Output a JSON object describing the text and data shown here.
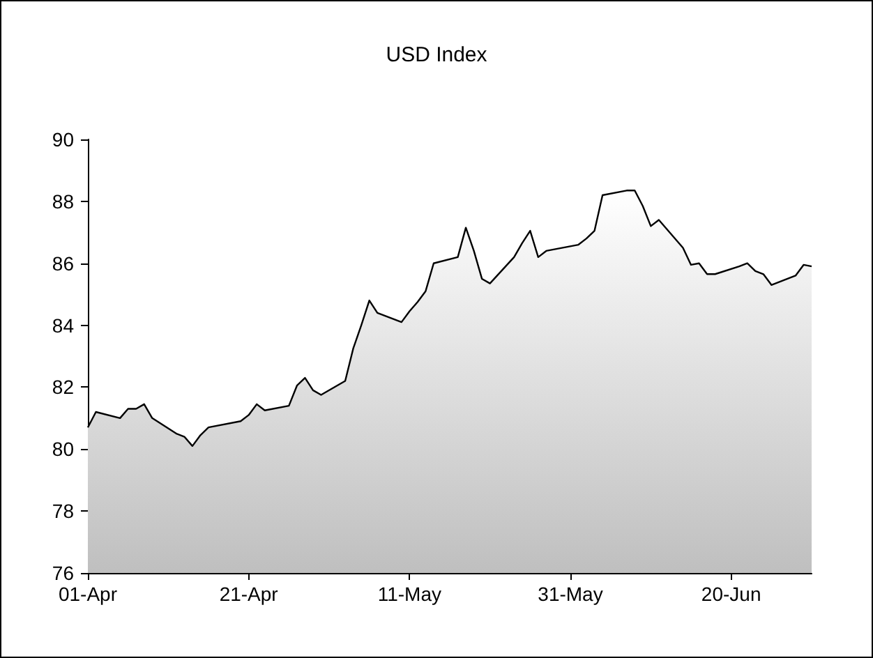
{
  "chart_data": {
    "type": "area",
    "title": "USD Index",
    "x": [
      "--04-01",
      "--04-02",
      "--04-05",
      "--04-06",
      "--04-07",
      "--04-08",
      "--04-09",
      "--04-12",
      "--04-13",
      "--04-14",
      "--04-15",
      "--04-16",
      "--04-20",
      "--04-21",
      "--04-22",
      "--04-23",
      "--04-26",
      "--04-27",
      "--04-28",
      "--04-29",
      "--04-30",
      "--05-03",
      "--05-04",
      "--05-05",
      "--05-06",
      "--05-07",
      "--05-10",
      "--05-11",
      "--05-12",
      "--05-13",
      "--05-14",
      "--05-17",
      "--05-18",
      "--05-19",
      "--05-20",
      "--05-21",
      "--05-24",
      "--05-25",
      "--05-26",
      "--05-27",
      "--05-28",
      "--06-01",
      "--06-02",
      "--06-03",
      "--06-04",
      "--06-07",
      "--06-08",
      "--06-09",
      "--06-10",
      "--06-11",
      "--06-14",
      "--06-15",
      "--06-16",
      "--06-17",
      "--06-18",
      "--06-21",
      "--06-22",
      "--06-23",
      "--06-24",
      "--06-25",
      "--06-28",
      "--06-29",
      "--06-30"
    ],
    "series": [
      {
        "color": "#000000",
        "values": [
          80.7,
          81.2,
          81.0,
          81.3,
          81.3,
          81.45,
          81.0,
          80.5,
          80.4,
          80.1,
          80.45,
          80.7,
          80.9,
          81.1,
          81.45,
          81.25,
          81.4,
          82.05,
          82.3,
          81.9,
          81.75,
          82.2,
          83.25,
          84.0,
          84.8,
          84.4,
          84.1,
          84.45,
          84.75,
          85.1,
          86.0,
          86.2,
          87.15,
          86.4,
          85.5,
          85.35,
          86.2,
          86.65,
          87.05,
          86.2,
          86.4,
          86.6,
          86.8,
          87.05,
          88.2,
          88.35,
          88.35,
          87.85,
          87.2,
          87.4,
          86.5,
          85.95,
          86.0,
          85.65,
          85.65,
          85.9,
          86.0,
          85.75,
          85.65,
          85.3,
          85.6,
          85.95,
          85.9
        ]
      }
    ],
    "xlim": [
      "--04-01",
      "--06-30"
    ],
    "xticks": [
      {
        "value": "--04-01",
        "label": "01-Apr"
      },
      {
        "value": "--04-21",
        "label": "21-Apr"
      },
      {
        "value": "--05-11",
        "label": "11-May"
      },
      {
        "value": "--05-31",
        "label": "31-May"
      },
      {
        "value": "--06-20",
        "label": "20-Jun"
      }
    ],
    "ylim": [
      76,
      90
    ],
    "yticks": [
      76,
      78,
      80,
      82,
      84,
      86,
      88,
      90
    ]
  }
}
